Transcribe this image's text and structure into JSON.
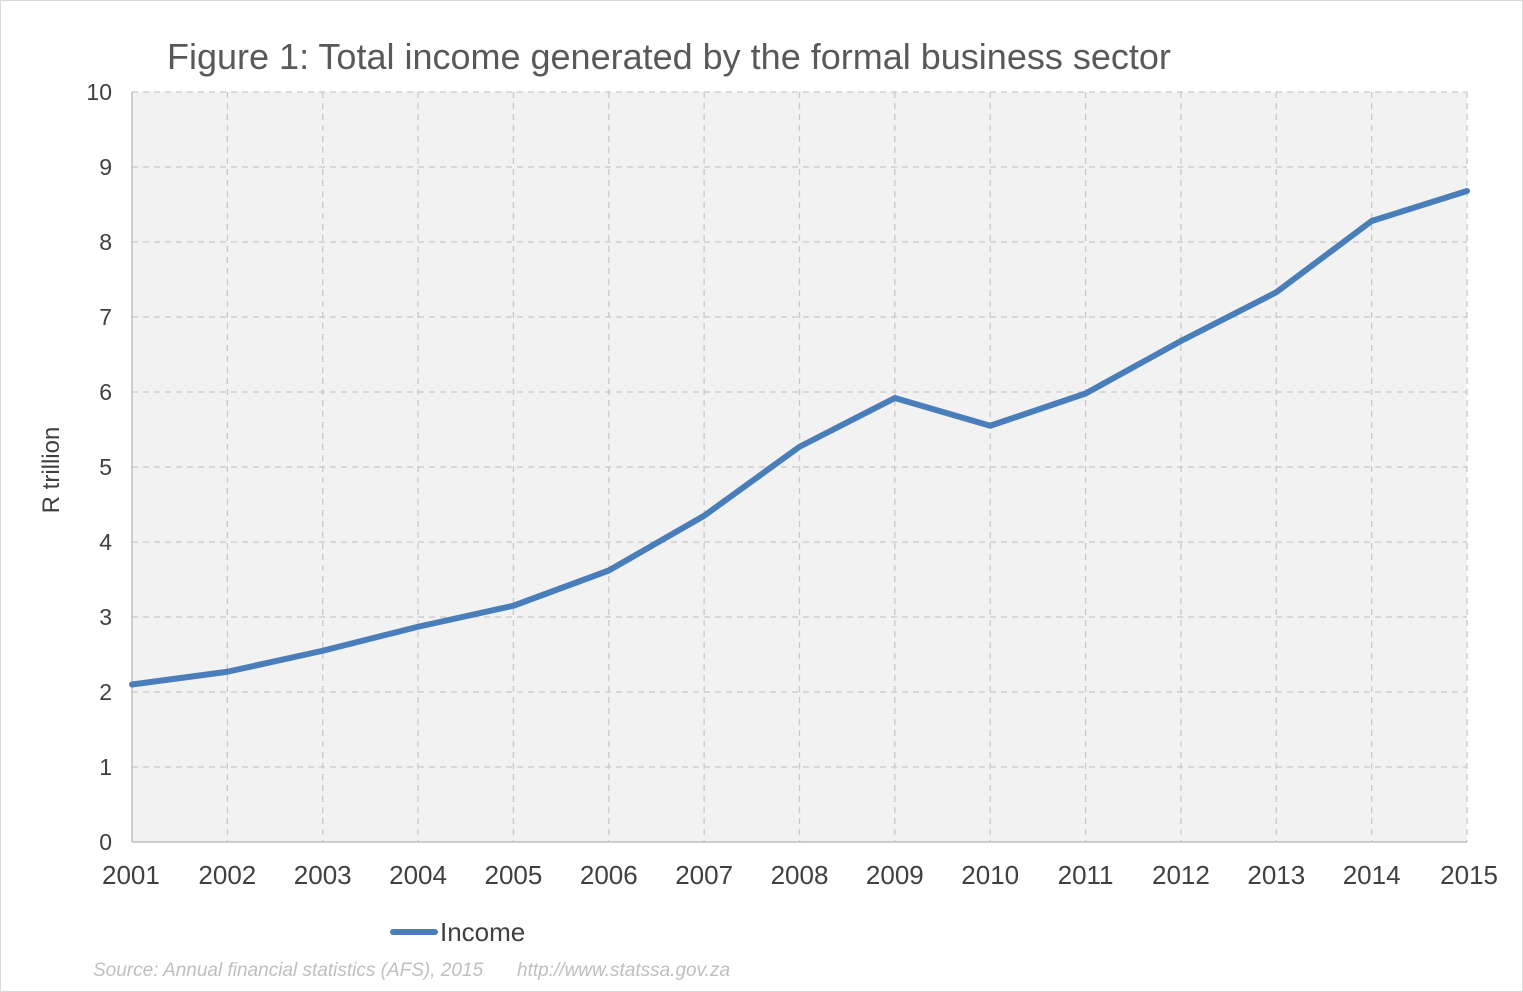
{
  "chart_data": {
    "type": "line",
    "title": "Figure 1: Total income generated by the formal business sector",
    "xlabel": "",
    "ylabel": "R trillion",
    "categories": [
      "2001",
      "2002",
      "2003",
      "2004",
      "2005",
      "2006",
      "2007",
      "2008",
      "2009",
      "2010",
      "2011",
      "2012",
      "2013",
      "2014",
      "2015"
    ],
    "series": [
      {
        "name": "Income",
        "color": "#4a7ebb",
        "values": [
          2.1,
          2.27,
          2.55,
          2.87,
          3.15,
          3.62,
          4.35,
          5.27,
          5.92,
          5.55,
          5.98,
          6.68,
          7.33,
          8.28,
          8.68
        ]
      }
    ],
    "ylim": [
      0,
      10
    ],
    "yticks": [
      0,
      1,
      2,
      3,
      4,
      5,
      6,
      7,
      8,
      9,
      10
    ],
    "grid": true,
    "legend_position": "bottom-left"
  },
  "source": {
    "text": "Source: Annual financial statistics (AFS), 2015",
    "url": "http://www.statssa.gov.za"
  }
}
